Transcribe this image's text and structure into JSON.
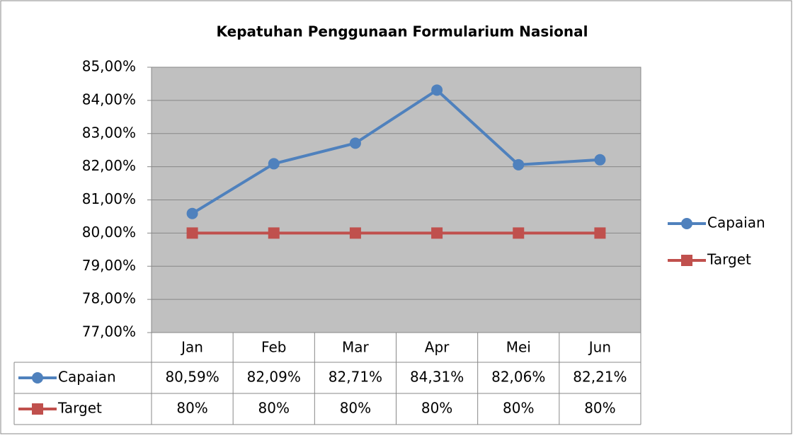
{
  "chart_data": {
    "type": "line",
    "title": "Kepatuhan Penggunaan Formularium Nasional",
    "categories": [
      "Jan",
      "Feb",
      "Mar",
      "Apr",
      "Mei",
      "Jun"
    ],
    "series": [
      {
        "name": "Capaian",
        "color": "#4f81bd",
        "values": [
          80.59,
          82.09,
          82.71,
          84.31,
          82.06,
          82.21
        ],
        "value_labels": [
          "80,59%",
          "82,09%",
          "82,71%",
          "84,31%",
          "82,06%",
          "82,21%"
        ]
      },
      {
        "name": "Target",
        "color": "#c0504d",
        "values": [
          80,
          80,
          80,
          80,
          80,
          80
        ],
        "value_labels": [
          "80%",
          "80%",
          "80%",
          "80%",
          "80%",
          "80%"
        ]
      }
    ],
    "ylim": [
      77,
      85
    ],
    "yticks": [
      {
        "value": 77,
        "label": "77,00%"
      },
      {
        "value": 78,
        "label": "78,00%"
      },
      {
        "value": 79,
        "label": "79,00%"
      },
      {
        "value": 80,
        "label": "80,00%"
      },
      {
        "value": 81,
        "label": "81,00%"
      },
      {
        "value": 82,
        "label": "82,00%"
      },
      {
        "value": 83,
        "label": "83,00%"
      },
      {
        "value": 84,
        "label": "84,00%"
      },
      {
        "value": 85,
        "label": "85,00%"
      }
    ],
    "grid": true,
    "legend": "right",
    "plot_background": "#c0c0c0"
  }
}
